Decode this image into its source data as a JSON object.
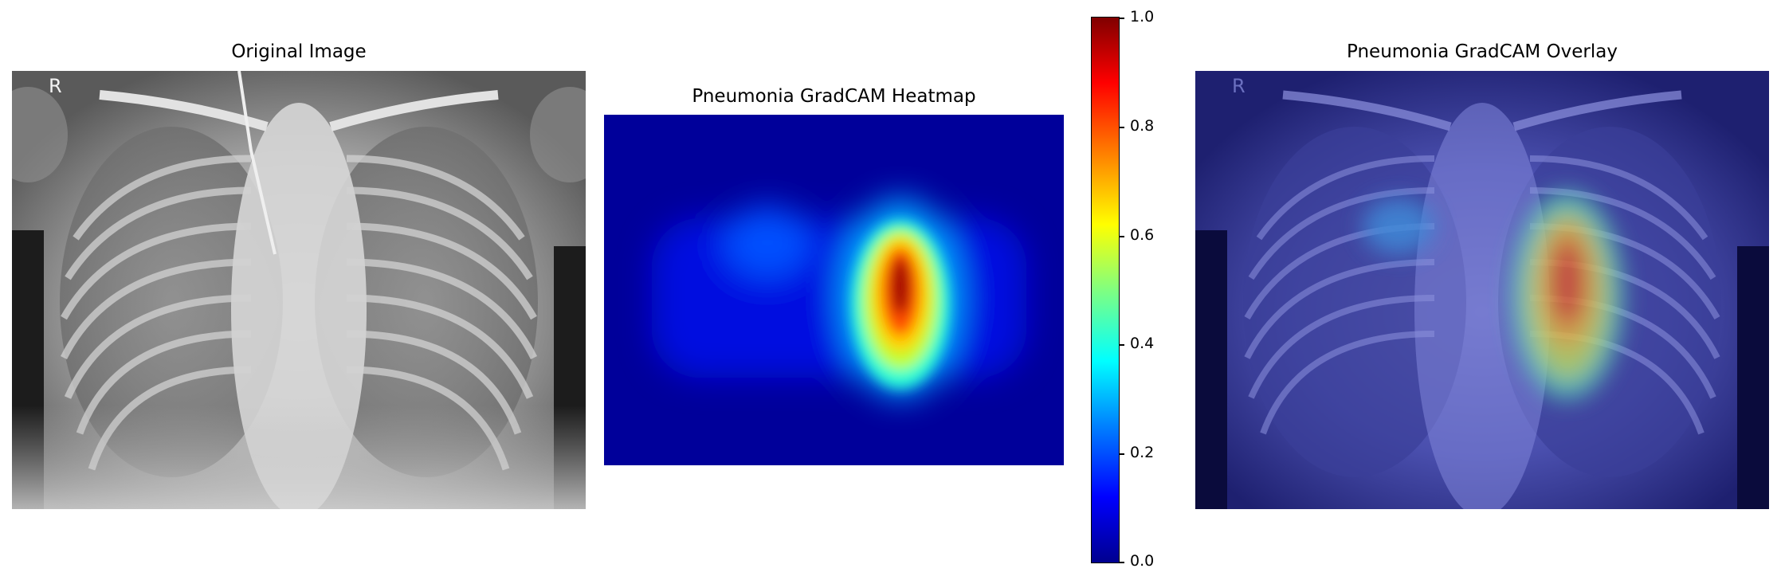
{
  "panels": {
    "original": {
      "title": "Original Image",
      "marker": "R"
    },
    "heatmap": {
      "title": "Pneumonia GradCAM Heatmap"
    },
    "overlay": {
      "title": "Pneumonia GradCAM Overlay",
      "marker": "R"
    }
  },
  "colorbar": {
    "colormap": "jet",
    "ticks": [
      "1.0",
      "0.8",
      "0.6",
      "0.4",
      "0.2",
      "0.0"
    ],
    "range": [
      0.0,
      1.0
    ]
  },
  "colors": {
    "jet_low": "#00008f",
    "jet_mid": "#00ffff",
    "jet_high": "#800000"
  }
}
